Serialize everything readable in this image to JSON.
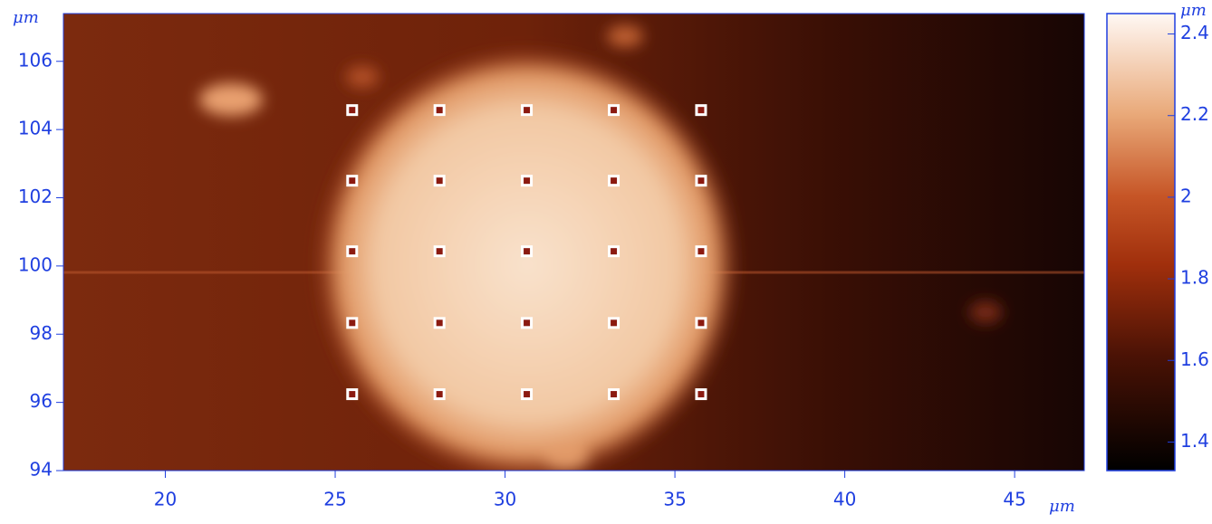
{
  "chart_data": {
    "type": "scatter",
    "x_unit": "μm",
    "y_unit": "μm",
    "x": [
      25.5,
      28.07,
      30.64,
      33.2,
      35.77,
      25.5,
      28.07,
      30.64,
      33.2,
      35.77,
      25.5,
      28.07,
      30.64,
      33.2,
      35.77,
      25.5,
      28.07,
      30.64,
      33.2,
      35.77,
      25.5,
      28.07,
      30.64,
      33.2,
      35.77
    ],
    "values": [
      104.57,
      104.57,
      104.57,
      104.57,
      104.57,
      102.5,
      102.5,
      102.5,
      102.5,
      102.5,
      100.43,
      100.43,
      100.43,
      100.43,
      100.43,
      98.33,
      98.33,
      98.33,
      98.33,
      98.33,
      96.24,
      96.24,
      96.24,
      96.24,
      96.24
    ],
    "color": "#ffffff",
    "xlim": [
      17,
      47.05
    ],
    "xticks": [
      20,
      25,
      30,
      35,
      40,
      45
    ],
    "ylim": [
      94,
      107.4
    ],
    "yticks": [
      94,
      96,
      98,
      100,
      102,
      104,
      106
    ],
    "colorbar": {
      "unit": "μm",
      "lim": [
        1.33,
        2.45
      ],
      "ticks": [
        1.4,
        1.6,
        1.8,
        2,
        2.2,
        2.4
      ]
    }
  }
}
